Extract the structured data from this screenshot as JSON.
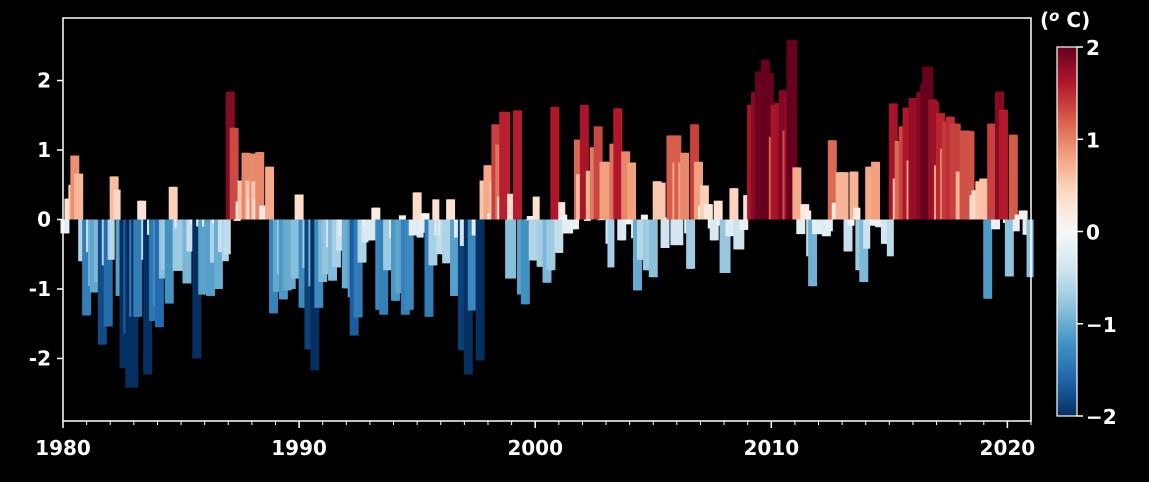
{
  "chart_data": {
    "type": "bar",
    "title": "",
    "xlabel": "",
    "ylabel": "",
    "x_start": "1980-01",
    "x_step": "monthly",
    "xlim": [
      1980,
      2021
    ],
    "ylim": [
      -2.9,
      2.9
    ],
    "x_ticks": [
      "1980",
      "1990",
      "2000",
      "2010",
      "2020"
    ],
    "y_ticks": [
      "-2",
      "-1",
      "0",
      "1",
      "2"
    ],
    "grid": false,
    "background": "#000000",
    "colormap": {
      "name": "RdBu_r",
      "vmin": -2,
      "vmax": 2,
      "colors": [
        "#053061",
        "#2166ac",
        "#4393c3",
        "#92c5de",
        "#d1e5f0",
        "#f7f7f7",
        "#fddbc7",
        "#f4a582",
        "#d6604d",
        "#b2182b",
        "#67001f"
      ]
    },
    "colorbar": {
      "label": "(o C)",
      "label_super": "o",
      "label_rest": " C)",
      "label_open": "(",
      "ticks": [
        "2",
        "1",
        "0",
        "−1",
        "−2"
      ]
    },
    "values": [
      -0.2,
      -0.2,
      0.3,
      0.3,
      0.5,
      0.92,
      0.92,
      0.66,
      0.66,
      -0.6,
      -0.6,
      -1.38,
      -1.38,
      -0.47,
      -0.96,
      -1.05,
      -1.05,
      -0.9,
      -0.9,
      -1.8,
      -1.8,
      -0.66,
      -1.54,
      -1.54,
      -0.58,
      0.62,
      0.62,
      0.43,
      -1.1,
      -1.1,
      -2.14,
      -2.14,
      -1.64,
      -2.42,
      -2.42,
      -1.4,
      -2.42,
      -1.4,
      -1.4,
      0.27,
      0.27,
      -0.58,
      -2.23,
      -2.23,
      -0.22,
      -1.46,
      -1.46,
      -1.25,
      -1.55,
      -1.55,
      -0.85,
      -0.73,
      -0.73,
      -1.21,
      -1.21,
      0.47,
      0.47,
      -0.74,
      -0.12,
      -0.73,
      -0.74,
      -0.73,
      -0.92,
      -0.92,
      -0.46,
      -0.46,
      -0.07,
      -2.0,
      -2.0,
      -0.1,
      -1.08,
      -1.08,
      -0.1,
      -1.08,
      -1.1,
      -1.1,
      -0.62,
      -0.06,
      -1.0,
      -1.0,
      -0.47,
      -0.47,
      -0.6,
      -0.5,
      1.84,
      1.84,
      1.32,
      1.32,
      -0.02,
      0.26,
      0.56,
      0.56,
      0.96,
      0.96,
      0.56,
      0.3,
      0.95,
      0.55,
      0.3,
      0.97,
      0.97,
      0.2,
      0.2,
      0.2,
      0.76,
      0.76,
      -1.35,
      -1.35,
      -1.04,
      -1.04,
      -0.79,
      -1.15,
      -1.15,
      -1.02,
      -1.02,
      -1.0,
      -1.0,
      -0.85,
      -0.85,
      0.36,
      0.36,
      -1.27,
      -1.27,
      -0.7,
      -1.87,
      -1.87,
      -0.96,
      -2.17,
      -2.17,
      -1.27,
      -1.27,
      -0.9,
      -0.9,
      -0.79,
      -0.79,
      -0.4,
      -0.88,
      -0.88,
      -0.69,
      -0.69,
      -0.45,
      -0.24,
      -0.24,
      -0.99,
      -0.99,
      -0.99,
      -1.12,
      -1.67,
      -1.67,
      -1.41,
      -1.41,
      -0.62,
      -0.62,
      -0.33,
      -0.09,
      -0.3,
      -0.3,
      -0.3,
      0.17,
      0.17,
      -1.3,
      -1.3,
      -1.37,
      -1.37,
      -0.73,
      -0.73,
      -0.73,
      -0.27,
      -1.17,
      -1.17,
      -1.06,
      -1.06,
      0.06,
      -1.37,
      -1.37,
      -1.3,
      -1.3,
      -0.23,
      -0.23,
      0.39,
      0.39,
      -0.26,
      -0.19,
      0.09,
      0.09,
      -1.4,
      -1.4,
      -0.66,
      -0.66,
      0.29,
      -0.23,
      -0.5,
      -0.23,
      -0.5,
      -0.63,
      -0.63,
      0.29,
      0.29,
      -1.1,
      -1.1,
      -0.26,
      -0.26,
      -1.88,
      -0.38,
      -0.38,
      -2.23,
      -2.23,
      -1.31,
      -1.31,
      -0.23,
      -0.23,
      -2.03,
      -2.03,
      0.56,
      0.56,
      0.78,
      0.78,
      0.09,
      0.55,
      1.37,
      1.37,
      1.08,
      0.33,
      1.55,
      1.55,
      1.55,
      -0.85,
      0.37,
      -0.85,
      0.37,
      1.57,
      1.57,
      -1.08,
      -1.08,
      -1.22,
      -1.22,
      -0.01,
      0.05,
      -0.59,
      -0.59,
      0.33,
      -0.59,
      -0.68,
      -0.68,
      -0.68,
      -0.91,
      -0.91,
      -0.73,
      -0.73,
      1.62,
      1.62,
      -0.48,
      -0.48,
      0.25,
      0.07,
      -0.2,
      -0.2,
      -0.2,
      -0.14,
      -0.14,
      -0.14,
      1.15,
      0.65,
      0.65,
      1.65,
      1.65,
      -0.02,
      0.7,
      0.7,
      1.04,
      1.04,
      1.34,
      1.34,
      -0.01,
      0.83,
      0.83,
      0.83,
      -0.35,
      -0.69,
      1.09,
      1.09,
      1.6,
      1.6,
      -0.3,
      -0.3,
      0.98,
      0.98,
      -0.07,
      0.82,
      0.82,
      -0.27,
      -1.02,
      -1.02,
      -0.58,
      -0.58,
      0.07,
      -0.73,
      -0.73,
      -0.66,
      -0.83,
      -0.83,
      0.55,
      0.55,
      0.53,
      0.53,
      -0.41,
      -0.41,
      0.03,
      1.21,
      1.21,
      -0.37,
      0.82,
      1.21,
      -0.37,
      0.82,
      0.96,
      0.96,
      -0.2,
      -0.71,
      -0.71,
      1.37,
      1.37,
      0.83,
      0.83,
      0.2,
      0.49,
      0.49,
      0.22,
      0.22,
      -0.13,
      -0.3,
      -0.3,
      0.27,
      0.27,
      -0.09,
      -0.77,
      -0.77,
      -0.77,
      -0.24,
      -0.24,
      0.45,
      0.45,
      -0.43,
      -0.43,
      -0.43,
      -0.15,
      -0.15,
      0.35,
      0.35,
      1.65,
      1.65,
      1.83,
      1.83,
      2.13,
      2.13,
      1.94,
      2.3,
      2.3,
      2.11,
      2.11,
      1.19,
      1.65,
      1.65,
      1.68,
      1.68,
      1.86,
      1.86,
      1.28,
      1.75,
      2.58,
      2.58,
      2.58,
      0.75,
      0.75,
      -0.21,
      -0.21,
      0.22,
      0.22,
      0.13,
      -0.53,
      -0.96,
      -0.96,
      -0.21,
      -0.21,
      -0.21,
      -0.21,
      -0.21,
      -0.24,
      -0.24,
      -0.17,
      1.14,
      1.14,
      0.24,
      0.24,
      0.68,
      0.68,
      0.68,
      0.68,
      -0.46,
      -0.46,
      -0.09,
      0.69,
      0.69,
      0.17,
      -0.73,
      -0.73,
      -0.9,
      -0.9,
      -0.42,
      0.76,
      0.76,
      -0.09,
      0.83,
      0.83,
      -0.11,
      -0.11,
      -0.11,
      -0.35,
      -0.35,
      -0.35,
      -0.53,
      1.67,
      1.67,
      0.59,
      1.13,
      1.13,
      1.34,
      1.34,
      1.61,
      1.61,
      0.85,
      1.75,
      1.75,
      1.75,
      1.75,
      1.83,
      1.83,
      1.96,
      2.2,
      2.2,
      2.2,
      1.73,
      1.73,
      1.7,
      0.78,
      1.53,
      1.53,
      1.02,
      1.41,
      1.41,
      1.48,
      1.48,
      1.38,
      1.38,
      1.38,
      0.69,
      0.69,
      1.28,
      1.28,
      1.28,
      1.27,
      1.27,
      0.35,
      0.42,
      0.42,
      0.55,
      0.55,
      0.59,
      0.59,
      -1.14,
      -1.14,
      1.38,
      1.38,
      -0.14,
      -0.14,
      1.84,
      1.84,
      1.58,
      1.58,
      -0.05,
      -0.82,
      -0.82,
      1.22,
      1.22,
      -0.17,
      0.07,
      0.07,
      0.13,
      0.13,
      -0.22,
      -0.22,
      -0.83
    ]
  }
}
